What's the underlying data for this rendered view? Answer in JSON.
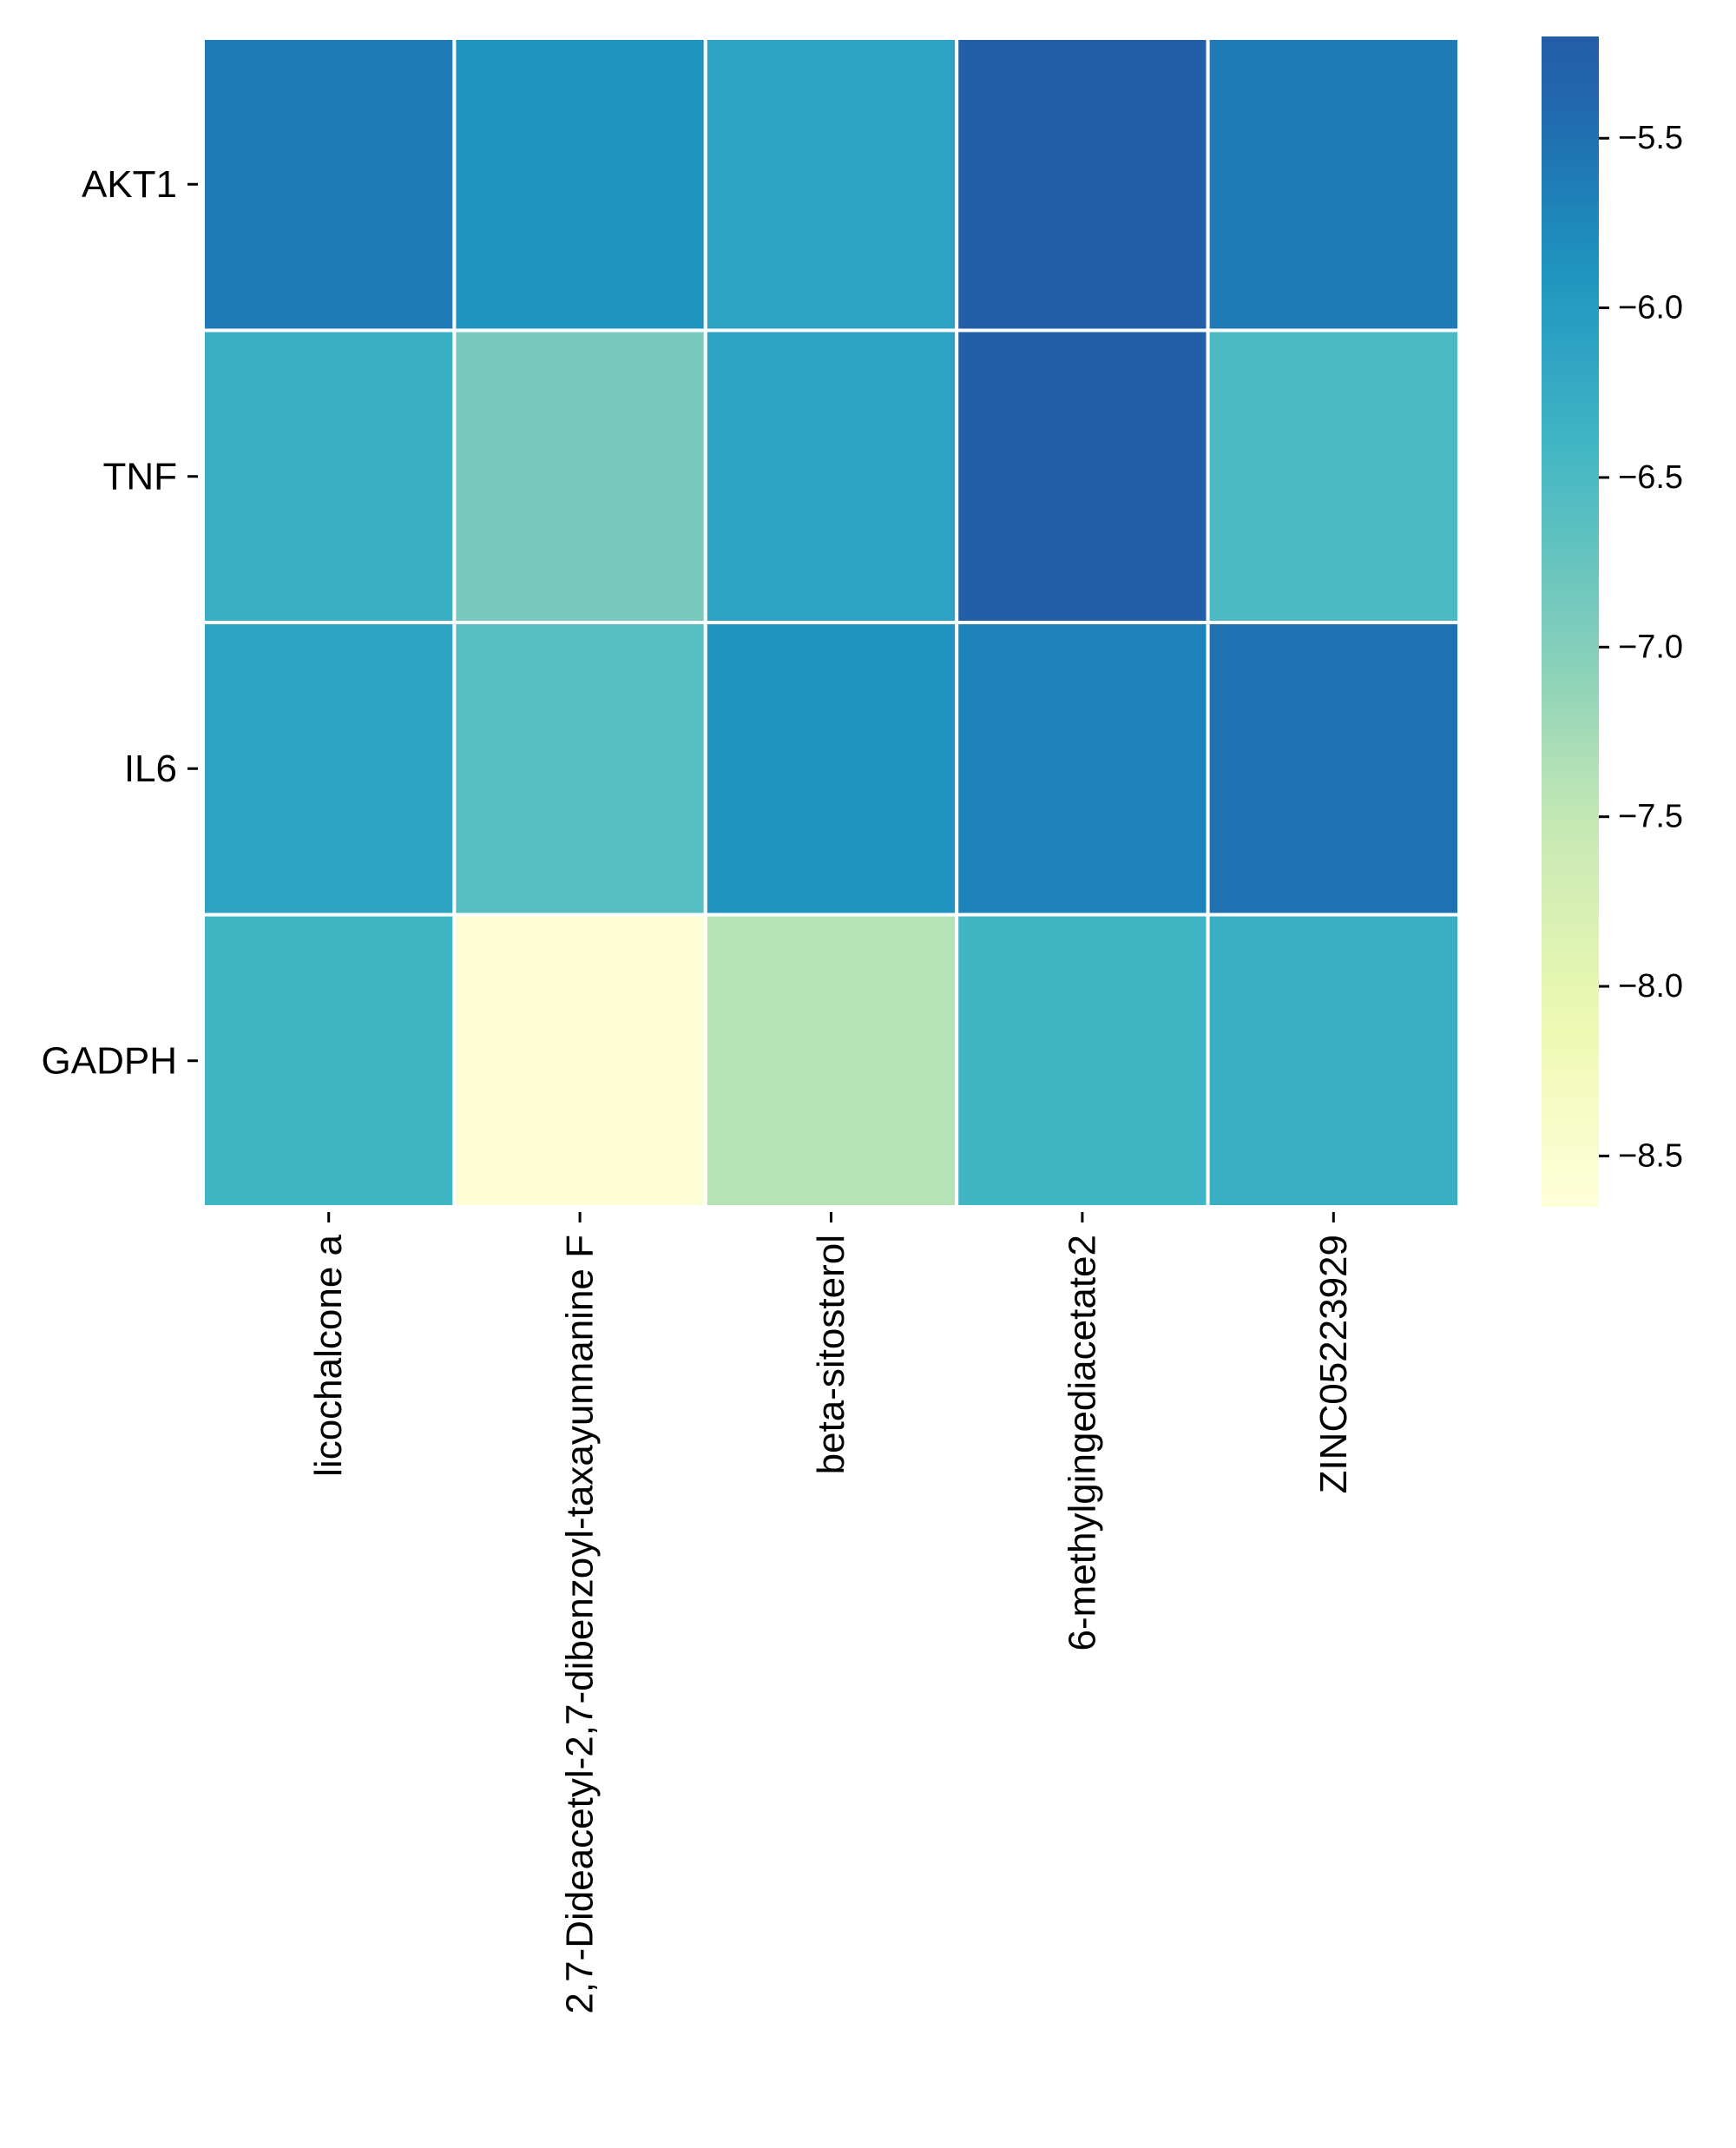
{
  "chart_data": {
    "type": "heatmap",
    "rows": [
      "AKT1",
      "TNF",
      "IL6",
      "GADPH"
    ],
    "columns": [
      "licochalcone a",
      "2,7-Dideacetyl-2,7-dibenzoyl-taxayunnanine F",
      "beta-sitosterol",
      "6-methylgingediacetate2",
      "ZINC05223929"
    ],
    "values": [
      [
        -5.6,
        -5.9,
        -6.1,
        -5.3,
        -5.6
      ],
      [
        -6.3,
        -6.9,
        -6.1,
        -5.3,
        -6.5
      ],
      [
        -6.1,
        -6.6,
        -5.9,
        -5.7,
        -5.5
      ],
      [
        -6.4,
        -8.6,
        -7.4,
        -6.4,
        -6.3
      ]
    ],
    "colorbar": {
      "min": -8.65,
      "max": -5.2,
      "ticks": [
        -5.5,
        -6.0,
        -6.5,
        -7.0,
        -7.5,
        -8.0,
        -8.5
      ],
      "tick_labels": [
        "−5.5",
        "−6.0",
        "−6.5",
        "−7.0",
        "−7.5",
        "−8.0",
        "−8.5"
      ],
      "colormap": "YlGnBu"
    },
    "title": "",
    "xlabel": "",
    "ylabel": ""
  }
}
